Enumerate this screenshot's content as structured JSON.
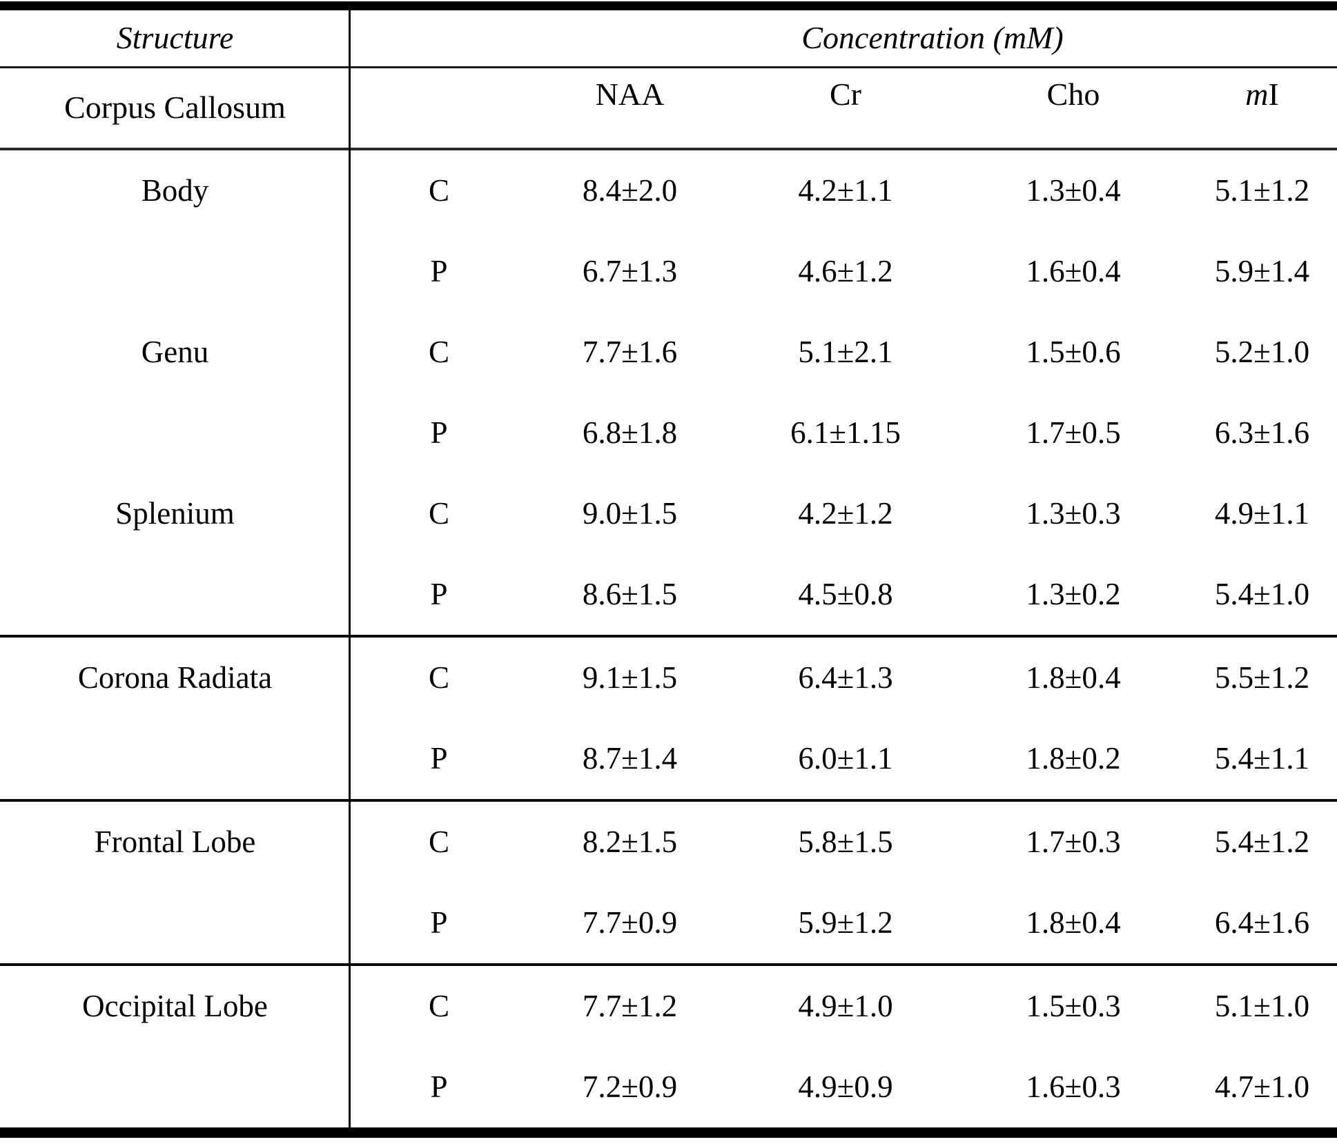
{
  "colors": {
    "text": "#000000",
    "rule": "#000000",
    "background": "#ffffff"
  },
  "table": {
    "title_col": "Structure",
    "span_header": "Concentration (mM)",
    "group_label": "Corpus Callosum",
    "columns": [
      {
        "pre_italic": "",
        "label": "NAA"
      },
      {
        "pre_italic": "",
        "label": "Cr"
      },
      {
        "pre_italic": "",
        "label": "Cho"
      },
      {
        "pre_italic": "m",
        "label": "I"
      }
    ],
    "sections": [
      {
        "rows": [
          {
            "structure": "Body",
            "cond": "C",
            "values": [
              "8.4±2.0",
              "4.2±1.1",
              "1.3±0.4",
              "5.1±1.2"
            ]
          },
          {
            "structure": "",
            "cond": "P",
            "values": [
              "6.7±1.3",
              "4.6±1.2",
              "1.6±0.4",
              "5.9±1.4"
            ]
          },
          {
            "structure": "Genu",
            "cond": "C",
            "values": [
              "7.7±1.6",
              "5.1±2.1",
              "1.5±0.6",
              "5.2±1.0"
            ]
          },
          {
            "structure": "",
            "cond": "P",
            "values": [
              "6.8±1.8",
              "6.1±1.15",
              "1.7±0.5",
              "6.3±1.6"
            ]
          },
          {
            "structure": "Splenium",
            "cond": "C",
            "values": [
              "9.0±1.5",
              "4.2±1.2",
              "1.3±0.3",
              "4.9±1.1"
            ]
          },
          {
            "structure": "",
            "cond": "P",
            "values": [
              "8.6±1.5",
              "4.5±0.8",
              "1.3±0.2",
              "5.4±1.0"
            ]
          }
        ]
      },
      {
        "rows": [
          {
            "structure": "Corona Radiata",
            "cond": "C",
            "values": [
              "9.1±1.5",
              "6.4±1.3",
              "1.8±0.4",
              "5.5±1.2"
            ]
          },
          {
            "structure": "",
            "cond": "P",
            "values": [
              "8.7±1.4",
              "6.0±1.1",
              "1.8±0.2",
              "5.4±1.1"
            ]
          }
        ]
      },
      {
        "rows": [
          {
            "structure": "Frontal Lobe",
            "cond": "C",
            "values": [
              "8.2±1.5",
              "5.8±1.5",
              "1.7±0.3",
              "5.4±1.2"
            ]
          },
          {
            "structure": "",
            "cond": "P",
            "values": [
              "7.7±0.9",
              "5.9±1.2",
              "1.8±0.4",
              "6.4±1.6"
            ]
          }
        ]
      },
      {
        "rows": [
          {
            "structure": "Occipital Lobe",
            "cond": "C",
            "values": [
              "7.7±1.2",
              "4.9±1.0",
              "1.5±0.3",
              "5.1±1.0"
            ]
          },
          {
            "structure": "",
            "cond": "P",
            "values": [
              "7.2±0.9",
              "4.9±0.9",
              "1.6±0.3",
              "4.7±1.0"
            ]
          }
        ]
      }
    ]
  }
}
